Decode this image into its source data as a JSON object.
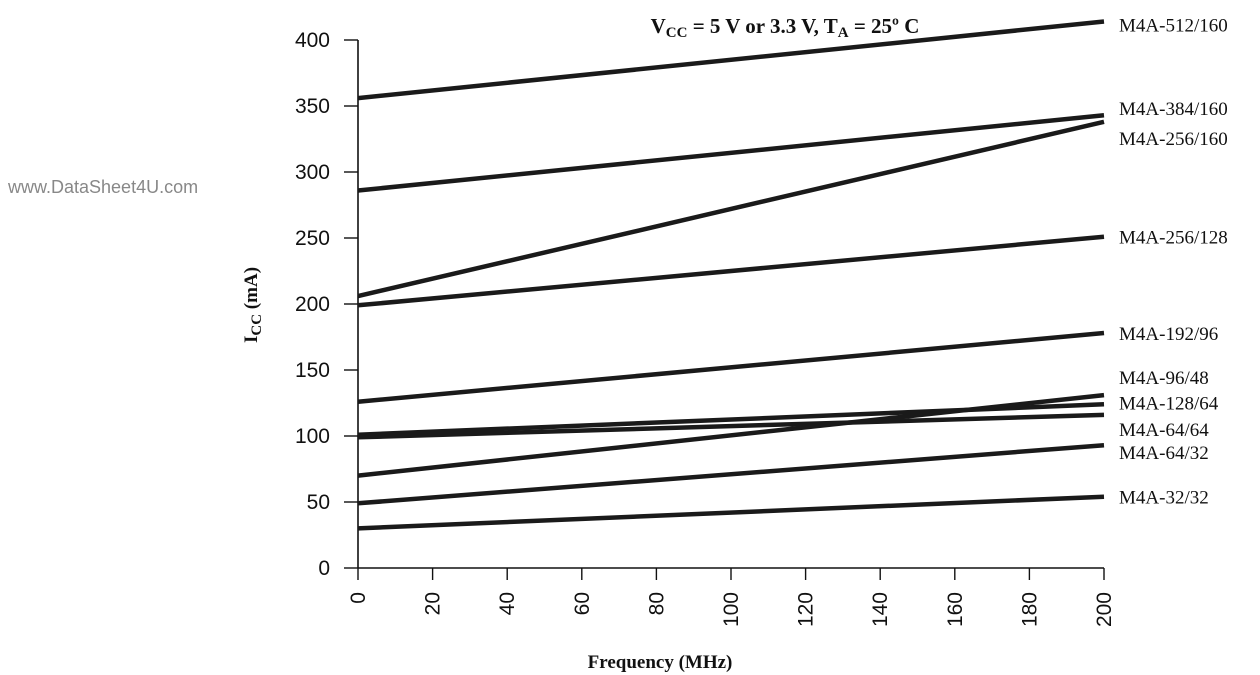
{
  "watermark": "www.DataSheet4U.com",
  "chart_data": {
    "type": "line",
    "title": {
      "parts": [
        {
          "t": "V",
          "s": "n"
        },
        {
          "t": "CC",
          "s": "sub"
        },
        {
          "t": " = 5 V or 3.3 V, T",
          "s": "n"
        },
        {
          "t": "A",
          "s": "sub"
        },
        {
          "t": " = 25º C",
          "s": "n"
        }
      ]
    },
    "xlabel": "Frequency (MHz)",
    "ylabel": {
      "parts": [
        {
          "t": "I",
          "s": "n"
        },
        {
          "t": "CC",
          "s": "sub"
        },
        {
          "t": " (mA)",
          "s": "n"
        }
      ]
    },
    "xlim": [
      0,
      200
    ],
    "ylim": [
      0,
      400
    ],
    "xticks": [
      0,
      20,
      40,
      60,
      80,
      100,
      120,
      140,
      160,
      180,
      200
    ],
    "yticks": [
      0,
      50,
      100,
      150,
      200,
      250,
      300,
      350,
      400
    ],
    "grid": false,
    "series": [
      {
        "name": "M4A-512/160",
        "x": [
          0,
          200
        ],
        "y": [
          356,
          414
        ]
      },
      {
        "name": "M4A-384/160",
        "x": [
          0,
          200
        ],
        "y": [
          286,
          343
        ]
      },
      {
        "name": "M4A-256/160",
        "x": [
          0,
          200
        ],
        "y": [
          206,
          338
        ]
      },
      {
        "name": "M4A-256/128",
        "x": [
          0,
          200
        ],
        "y": [
          199,
          251
        ]
      },
      {
        "name": "M4A-192/96",
        "x": [
          0,
          200
        ],
        "y": [
          126,
          178
        ]
      },
      {
        "name": "M4A-96/48",
        "x": [
          0,
          200
        ],
        "y": [
          70,
          131
        ]
      },
      {
        "name": "M4A-128/64",
        "x": [
          0,
          200
        ],
        "y": [
          101,
          124
        ]
      },
      {
        "name": "M4A-64/64",
        "x": [
          0,
          200
        ],
        "y": [
          99,
          116
        ]
      },
      {
        "name": "M4A-64/32",
        "x": [
          0,
          200
        ],
        "y": [
          49,
          93
        ]
      },
      {
        "name": "M4A-32/32",
        "x": [
          0,
          200
        ],
        "y": [
          30,
          54
        ]
      }
    ]
  }
}
